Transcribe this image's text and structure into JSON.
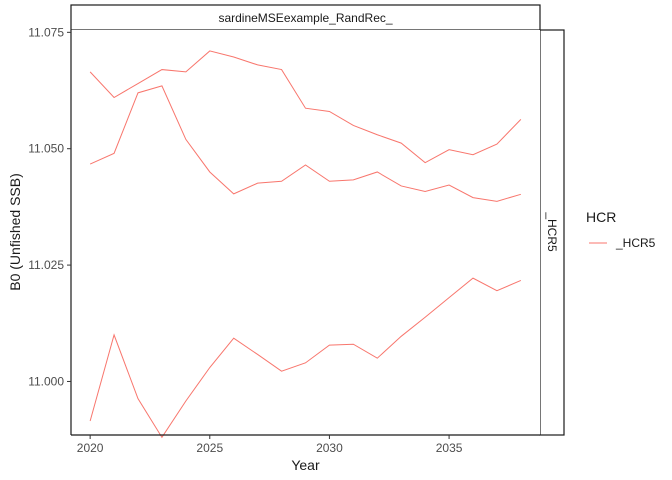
{
  "chart_data": {
    "type": "line",
    "facet_top": "sardineMSEexample_RandRec_",
    "facet_right": "_HCR5",
    "xlabel": "Year",
    "ylabel": "B0 (Unfished SSB)",
    "xlim": [
      2019.2,
      2038.8
    ],
    "ylim": [
      10.9885,
      11.0755
    ],
    "x_ticks": [
      2020,
      2025,
      2030,
      2035
    ],
    "y_ticks": [
      11.0,
      11.025,
      11.05,
      11.075
    ],
    "y_tick_labels": [
      "11.000",
      "11.025",
      "11.050",
      "11.075"
    ],
    "grid": false,
    "legend": {
      "title": "HCR",
      "position": "right",
      "entries": [
        "_HCR5"
      ]
    },
    "series_color": "#F8766D",
    "series": [
      {
        "x": [
          2020,
          2021,
          2022,
          2023,
          2024,
          2025,
          2026,
          2027,
          2028,
          2029,
          2030,
          2031,
          2032,
          2033,
          2034,
          2035,
          2036,
          2037,
          2038
        ],
        "values": [
          11.0665,
          11.061,
          11.064,
          11.067,
          11.0665,
          11.071,
          11.0697,
          11.068,
          11.067,
          11.0587,
          11.058,
          11.055,
          11.053,
          11.0512,
          11.047,
          11.0498,
          11.0487,
          11.051,
          11.0563
        ]
      },
      {
        "x": [
          2020,
          2021,
          2022,
          2023,
          2024,
          2025,
          2026,
          2027,
          2028,
          2029,
          2030,
          2031,
          2032,
          2033,
          2034,
          2035,
          2036,
          2037,
          2038
        ],
        "values": [
          11.0467,
          11.049,
          11.062,
          11.0635,
          11.052,
          11.045,
          11.0403,
          11.0426,
          11.043,
          11.0465,
          11.043,
          11.0433,
          11.045,
          11.042,
          11.0408,
          11.0422,
          11.0395,
          11.0387,
          11.0402
        ]
      },
      {
        "x": [
          2020,
          2021,
          2022,
          2023,
          2024,
          2025,
          2026,
          2027,
          2028,
          2029,
          2030,
          2031,
          2032,
          2033,
          2034,
          2035,
          2036,
          2037,
          2038
        ],
        "values": [
          10.9915,
          11.01,
          10.9963,
          10.988,
          10.9958,
          11.003,
          11.0093,
          11.0058,
          11.0022,
          11.004,
          11.0078,
          11.008,
          11.005,
          11.0097,
          11.0138,
          11.018,
          11.0222,
          11.0195,
          11.0217
        ]
      }
    ]
  }
}
